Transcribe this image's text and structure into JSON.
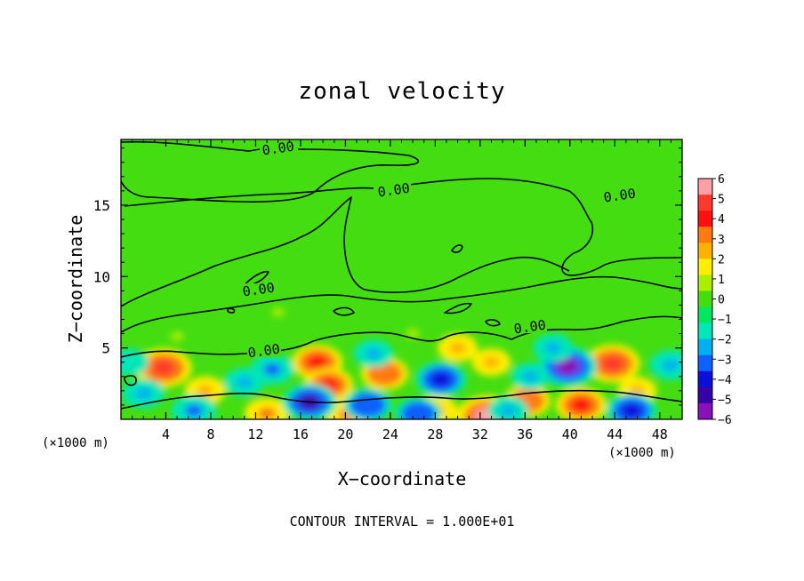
{
  "chart_data": {
    "type": "heatmap",
    "title": "zonal velocity",
    "xlabel": "X−coordinate",
    "ylabel": "Z−coordinate",
    "x_unit": "(×1000 m)",
    "x_ticks": [
      "4",
      "8",
      "12",
      "16",
      "20",
      "24",
      "28",
      "32",
      "36",
      "40",
      "44",
      "48"
    ],
    "y_ticks": [
      "5",
      "10",
      "15"
    ],
    "xlim": [
      0,
      50
    ],
    "ylim": [
      0,
      19.6
    ],
    "colorbar": {
      "ticks": [
        "6",
        "5",
        "4",
        "3",
        "2",
        "1",
        "0",
        "−1",
        "−2",
        "−3",
        "−4",
        "−5",
        "−6"
      ],
      "range": [
        -6,
        6
      ],
      "colors": [
        "#ff9fa8",
        "#ff3a2c",
        "#ff1010",
        "#ff7a10",
        "#ffb000",
        "#ffee00",
        "#aaee00",
        "#44dd10",
        "#00e660",
        "#00e6b8",
        "#00b0f0",
        "#1060ff",
        "#0a10d8",
        "#3a00a8",
        "#8a10b8"
      ]
    },
    "contour_labels": [
      "0.00",
      "0.00",
      "0.00",
      "0.00",
      "0.00",
      "0.00"
    ],
    "features": [
      {
        "x": 3.8,
        "z": 3.6,
        "v": 5.2
      },
      {
        "x": 17.5,
        "z": 4.0,
        "v": 4.2
      },
      {
        "x": 18.5,
        "z": 2.4,
        "v": 4.0
      },
      {
        "x": 23.5,
        "z": 3.2,
        "v": 3.6
      },
      {
        "x": 30.0,
        "z": 5.0,
        "v": 2.4
      },
      {
        "x": 33.0,
        "z": 4.0,
        "v": 2.2
      },
      {
        "x": 43.8,
        "z": 3.9,
        "v": 5.0
      },
      {
        "x": 36.2,
        "z": 1.3,
        "v": 3.5
      },
      {
        "x": 41.0,
        "z": 1.0,
        "v": 4.2
      },
      {
        "x": 7.5,
        "z": 2.0,
        "v": 2.5
      },
      {
        "x": 13.0,
        "z": 0.4,
        "v": 3.2
      },
      {
        "x": 20.2,
        "z": 0.3,
        "v": 3.2
      },
      {
        "x": 28.0,
        "z": 0.6,
        "v": 3.2
      },
      {
        "x": 32.6,
        "z": 0.2,
        "v": 6.0
      },
      {
        "x": 46.0,
        "z": 2.0,
        "v": 2.2
      },
      {
        "x": 5.0,
        "z": 5.8,
        "v": 1.2
      },
      {
        "x": 14.0,
        "z": 7.5,
        "v": 0.8
      },
      {
        "x": 26.0,
        "z": 6.0,
        "v": 1.2
      },
      {
        "x": 22.5,
        "z": 4.6,
        "v": -2.3
      },
      {
        "x": 28.5,
        "z": 2.8,
        "v": -4.2
      },
      {
        "x": 39.8,
        "z": 3.7,
        "v": -5.6
      },
      {
        "x": 16.8,
        "z": 1.2,
        "v": -4.8
      },
      {
        "x": 22.0,
        "z": 1.0,
        "v": -3.8
      },
      {
        "x": 45.5,
        "z": 0.6,
        "v": -4.2
      },
      {
        "x": 26.5,
        "z": 0.4,
        "v": -3.5
      },
      {
        "x": 2.0,
        "z": 1.8,
        "v": -2.8
      },
      {
        "x": 6.5,
        "z": 0.6,
        "v": -3.2
      },
      {
        "x": 11.0,
        "z": 2.6,
        "v": -2.4
      },
      {
        "x": 13.5,
        "z": 3.5,
        "v": -3.0
      },
      {
        "x": 49.0,
        "z": 3.8,
        "v": -2.8
      },
      {
        "x": 36.5,
        "z": 3.0,
        "v": -2.2
      },
      {
        "x": 38.5,
        "z": 5.0,
        "v": -2.4
      },
      {
        "x": 0.8,
        "z": 4.0,
        "v": -2.0
      },
      {
        "x": 34.5,
        "z": 0.6,
        "v": -2.5
      }
    ]
  },
  "footnote": "CONTOUR INTERVAL = 1.000E+01"
}
